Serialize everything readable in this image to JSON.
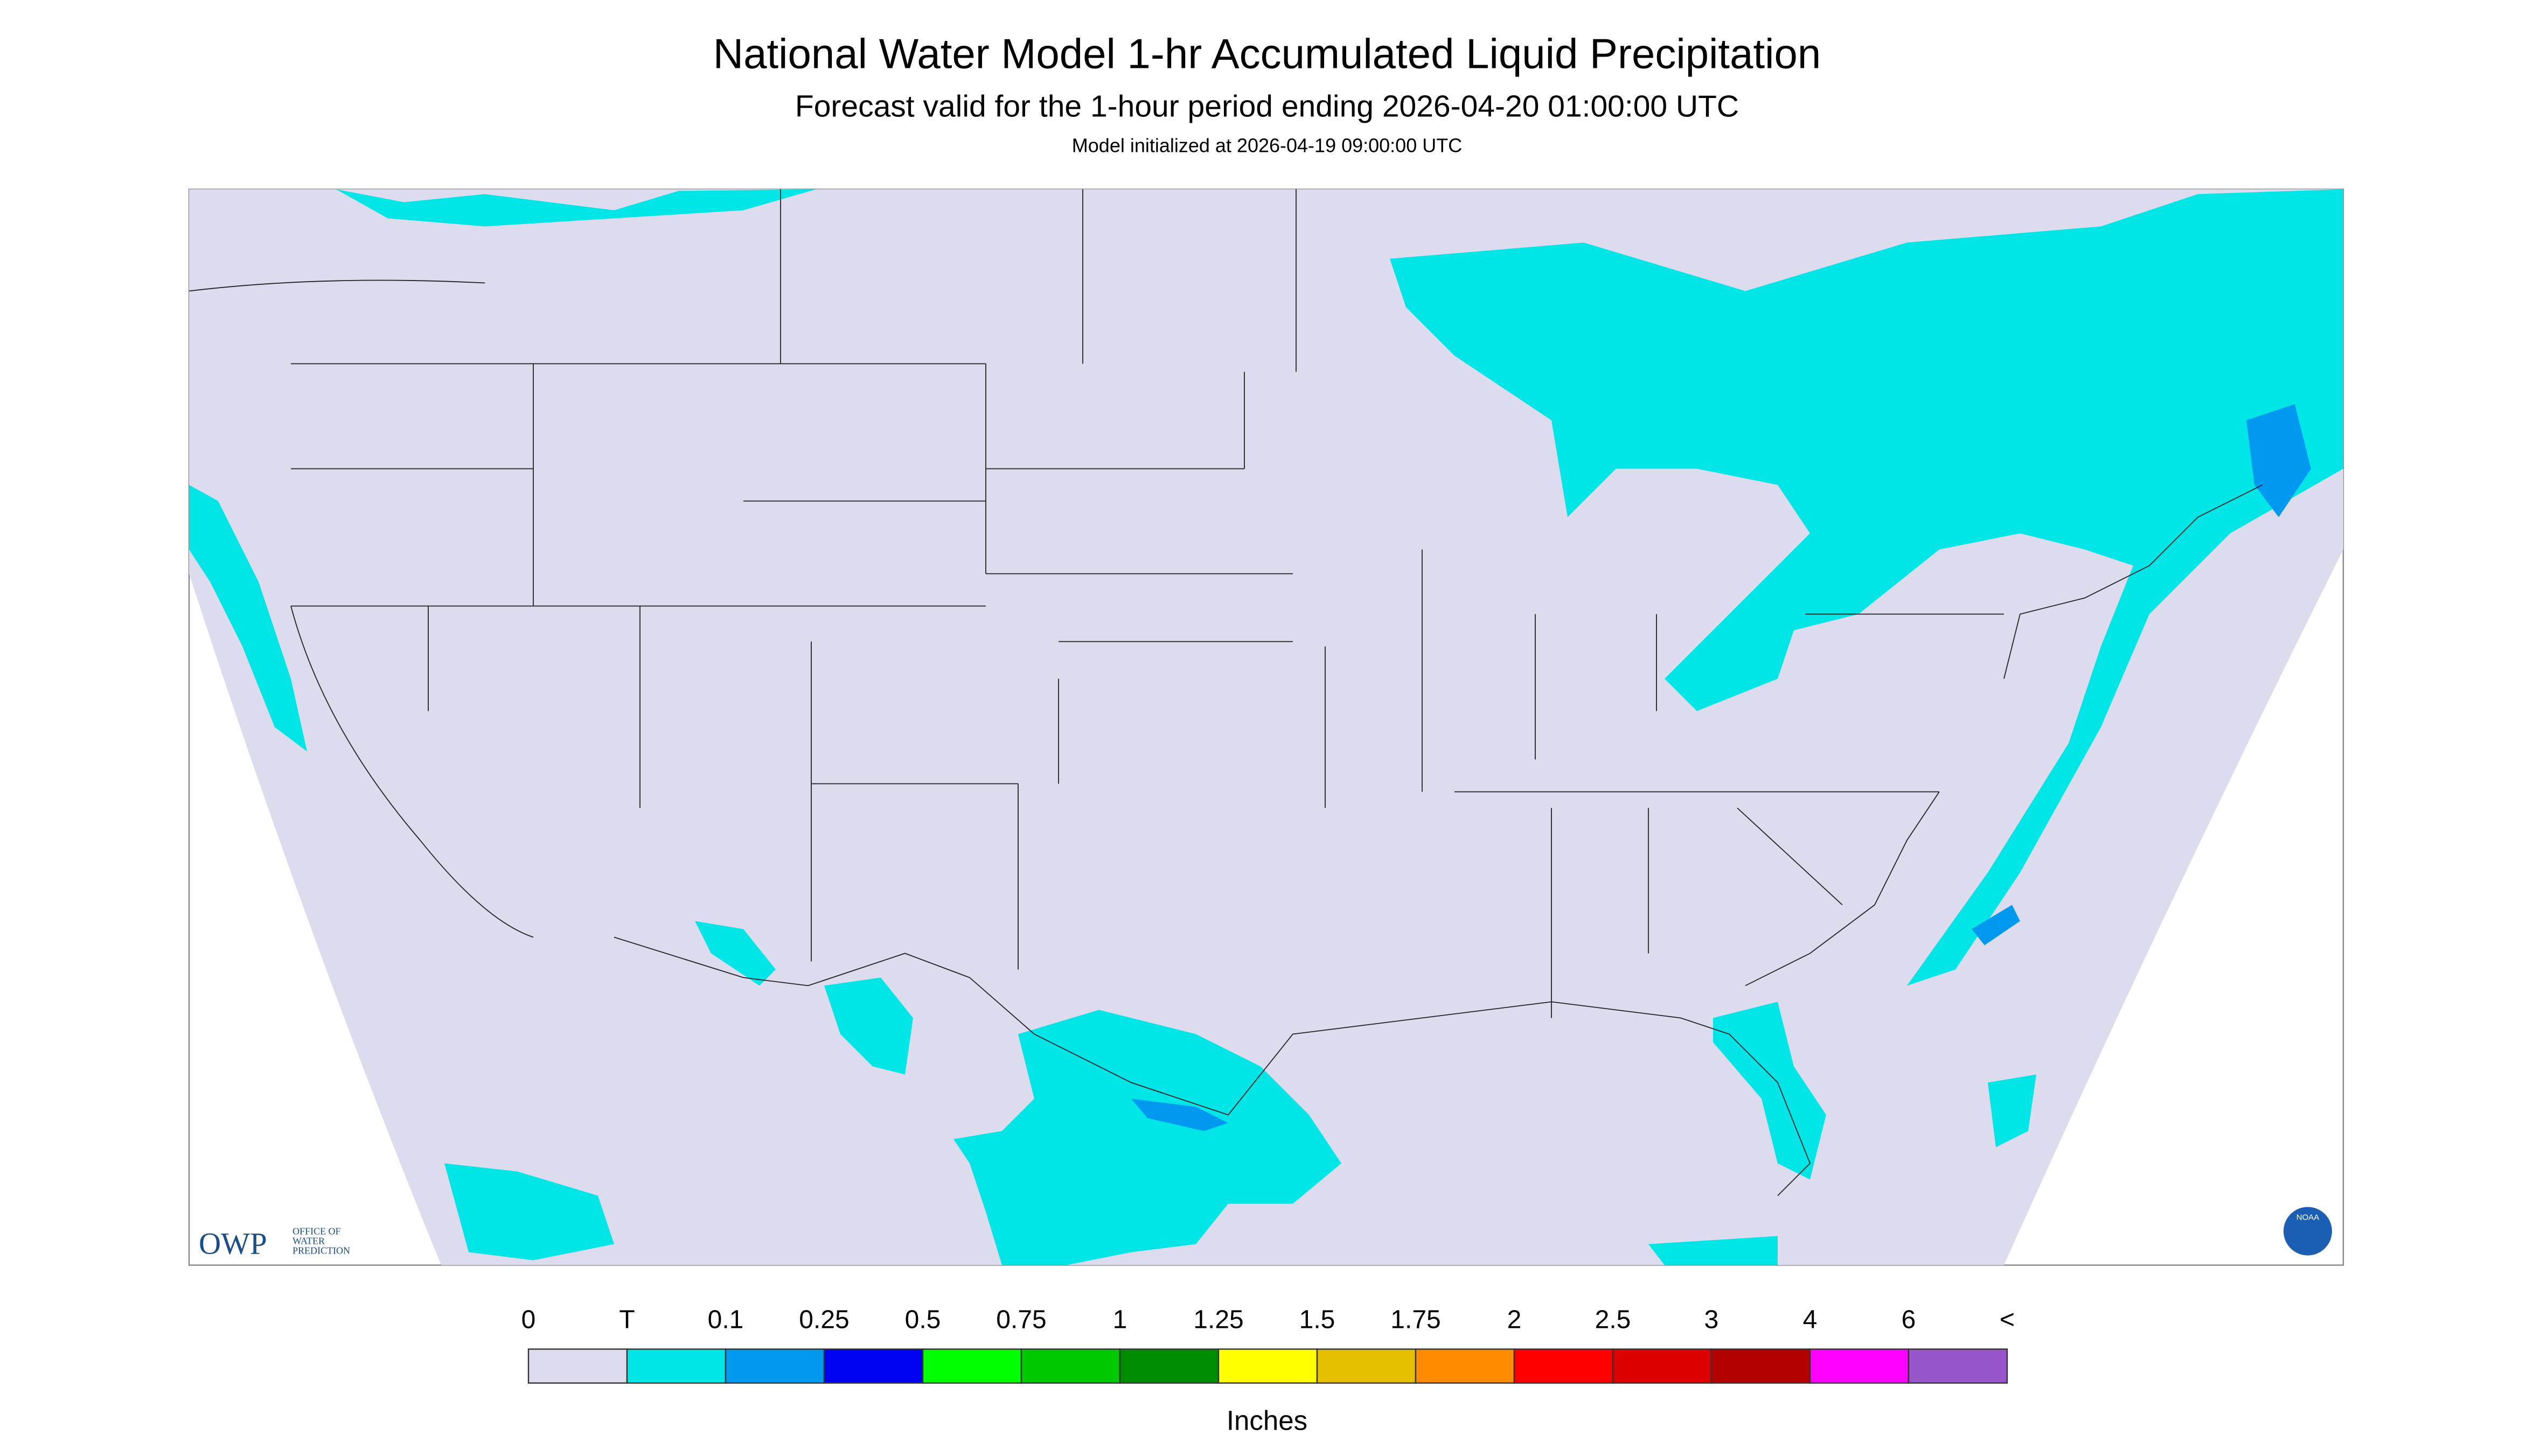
{
  "header": {
    "title": "National Water Model 1-hr Accumulated Liquid Precipitation",
    "subtitle": "Forecast valid for the 1-hour period ending 2026-04-20 01:00:00 UTC",
    "note": "Model initialized at 2026-04-19 09:00:00 UTC"
  },
  "legend": {
    "labels": [
      "0",
      "T",
      "0.1",
      "0.25",
      "0.5",
      "0.75",
      "1",
      "1.25",
      "1.5",
      "1.75",
      "2",
      "2.5",
      "3",
      "4",
      "6",
      "<"
    ],
    "colors": [
      "#dcdcee",
      "#00e6e6",
      "#0099f0",
      "#0000f0",
      "#00ff00",
      "#00c800",
      "#008c00",
      "#ffff00",
      "#e6be00",
      "#ff8c00",
      "#ff0000",
      "#dc0000",
      "#b40000",
      "#ff00ff",
      "#9955cc"
    ],
    "unit": "Inches"
  },
  "logos": {
    "owp": "OWP",
    "owp_lines": [
      "OFFICE OF",
      "WATER",
      "PREDICTION"
    ],
    "noaa": "NOAA"
  }
}
